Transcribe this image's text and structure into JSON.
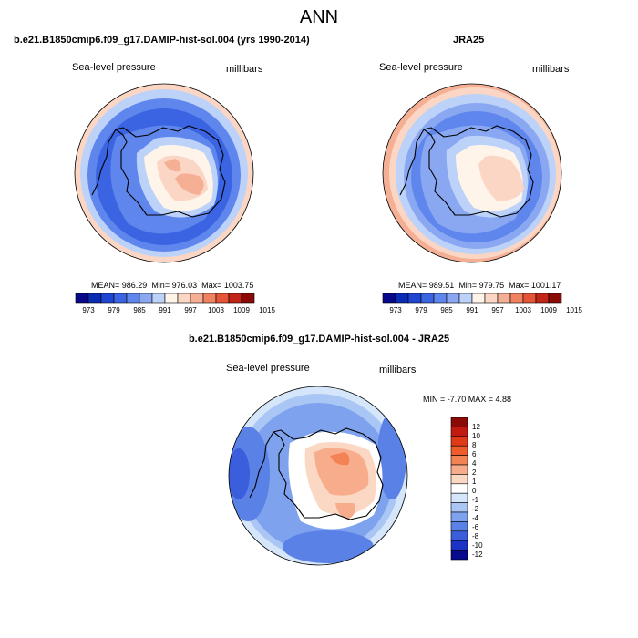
{
  "title": "ANN",
  "panels": [
    {
      "case_title": "b.e21.B1850cmip6.f09_g17.DAMIP-hist-sol.004 (yrs 1990-2014)",
      "variable": "Sea-level pressure",
      "units": "millibars",
      "stats": {
        "mean": "MEAN= 986.29",
        "min": "Min= 976.03",
        "max": "Max= 1003.75"
      },
      "colorbar_ticks": [
        "973",
        "979",
        "985",
        "991",
        "997",
        "1003",
        "1009",
        "1015"
      ]
    },
    {
      "case_title": "JRA25",
      "variable": "Sea-level pressure",
      "units": "millibars",
      "stats": {
        "mean": "MEAN= 989.51",
        "min": "Min= 979.75",
        "max": "Max= 1001.17"
      },
      "colorbar_ticks": [
        "973",
        "979",
        "985",
        "991",
        "997",
        "1003",
        "1009",
        "1015"
      ]
    }
  ],
  "diff": {
    "title": "b.e21.B1850cmip6.f09_g17.DAMIP-hist-sol.004 - JRA25",
    "variable": "Sea-level pressure",
    "units": "millibars",
    "minmax": "MIN =  -7.70 MAX =   4.88",
    "colorbar_ticks": [
      "12",
      "10",
      "8",
      "6",
      "4",
      "2",
      "1",
      "0",
      "-1",
      "-2",
      "-4",
      "-6",
      "-8",
      "-10",
      "-12"
    ]
  },
  "colors": {
    "abs_scale": [
      "#08088a",
      "#0a2bb4",
      "#1e46d2",
      "#3a64e2",
      "#5f86ec",
      "#8aa8f2",
      "#bcd2f8",
      "#fff4ea",
      "#fbd6c4",
      "#f5af94",
      "#ef8260",
      "#e55436",
      "#c22418",
      "#8a0a08"
    ],
    "diff_scale": [
      "#8a0a08",
      "#c21a10",
      "#e13a18",
      "#ee5c2c",
      "#f38254",
      "#f7ad8c",
      "#fbd8c4",
      "#ffffff",
      "#d6e6fa",
      "#aac6f4",
      "#7fa2ee",
      "#5a82e6",
      "#3a5edc",
      "#1b32c6",
      "#070a8c"
    ],
    "land_outline": "#000000"
  }
}
